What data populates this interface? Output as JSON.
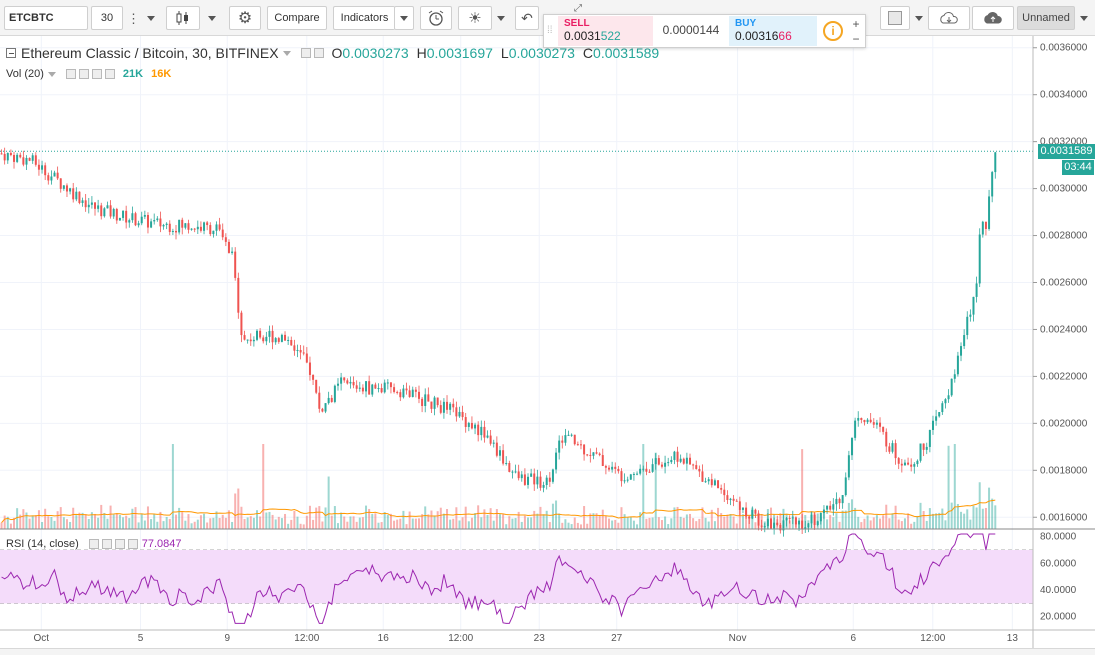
{
  "toolbar": {
    "symbol": "ETCBTC",
    "interval": "30",
    "compare_label": "Compare",
    "indicators_label": "Indicators",
    "layout_label": "Unnamed"
  },
  "trade": {
    "sell_label": "SELL",
    "sell_price_main": "0.0031",
    "sell_price_tail": "522",
    "spread": "0.0000144",
    "buy_label": "BUY",
    "buy_price_main": "0.00316",
    "buy_price_tail": "66",
    "info_glyph": "i",
    "plus": "+",
    "minus": "−"
  },
  "legend": {
    "title": "Ethereum Classic / Bitcoin, 30, BITFINEX",
    "o_key": "O",
    "o_value": "0.0030273",
    "h_key": "H",
    "h_value": "0.0031697",
    "l_key": "L",
    "l_value": "0.0030273",
    "c_key": "C",
    "c_value": "0.0031589",
    "vol_label": "Vol (20)",
    "vol_value": "21K",
    "vol_ma_value": "16K",
    "rsi_label": "RSI (14, close)",
    "rsi_value": "77.0847"
  },
  "price_tags": {
    "last_price": "0.0031589",
    "countdown": "03:44"
  },
  "colors": {
    "up": "#26a69a",
    "down": "#ef5350",
    "rsi_line": "#9c27b0",
    "rsi_band": "#f4dcfa",
    "vol_ma": "#ff9800",
    "accent_info": "#f5a623"
  },
  "chart_data": {
    "type": "candlestick",
    "symbol_title": "Ethereum Classic / Bitcoin, 30, BITFINEX",
    "price_axis": {
      "ticks": [
        "0.0036000",
        "0.0034000",
        "0.0032000",
        "0.0030000",
        "0.0028000",
        "0.0026000",
        "0.0024000",
        "0.0022000",
        "0.0020000",
        "0.0018000",
        "0.0016000"
      ],
      "range": [
        0.00155,
        0.00365
      ]
    },
    "time_axis": {
      "ticks": [
        "Oct",
        "5",
        "9",
        "12:00",
        "16",
        "12:00",
        "23",
        "27",
        "Nov",
        "6",
        "12:00",
        "13"
      ],
      "tick_fraction": [
        0.04,
        0.136,
        0.22,
        0.297,
        0.371,
        0.446,
        0.522,
        0.597,
        0.714,
        0.826,
        0.903,
        0.98
      ]
    },
    "price_path": {
      "x_fraction": [
        0.0,
        0.03,
        0.06,
        0.09,
        0.12,
        0.15,
        0.18,
        0.21,
        0.225,
        0.235,
        0.255,
        0.28,
        0.3,
        0.31,
        0.33,
        0.36,
        0.39,
        0.41,
        0.44,
        0.47,
        0.5,
        0.53,
        0.545,
        0.57,
        0.6,
        0.63,
        0.655,
        0.68,
        0.7,
        0.72,
        0.74,
        0.76,
        0.78,
        0.8,
        0.815,
        0.83,
        0.85,
        0.87,
        0.885,
        0.9,
        0.92,
        0.935,
        0.945,
        0.95,
        0.955,
        0.96,
        0.965
      ],
      "close": [
        0.00315,
        0.00312,
        0.00302,
        0.00292,
        0.00288,
        0.00285,
        0.00284,
        0.00283,
        0.0027,
        0.00235,
        0.00238,
        0.00236,
        0.00223,
        0.00205,
        0.00217,
        0.00215,
        0.00214,
        0.0021,
        0.00205,
        0.00195,
        0.00177,
        0.00175,
        0.00195,
        0.00188,
        0.00178,
        0.00182,
        0.00186,
        0.00178,
        0.00172,
        0.00162,
        0.00158,
        0.00157,
        0.00158,
        0.00162,
        0.0017,
        0.00205,
        0.00198,
        0.00185,
        0.00184,
        0.00195,
        0.00215,
        0.0024,
        0.0026,
        0.0029,
        0.00285,
        0.00305,
        0.00316
      ]
    },
    "volume_ma_last": "16K",
    "volume_last": "21K",
    "rsi": {
      "period": 14,
      "last": 77.0847,
      "ticks": [
        "80.0000",
        "60.0000",
        "40.0000",
        "20.0000"
      ],
      "band": [
        30,
        70
      ],
      "range": [
        10,
        85
      ]
    },
    "last_price": 0.0031589
  }
}
